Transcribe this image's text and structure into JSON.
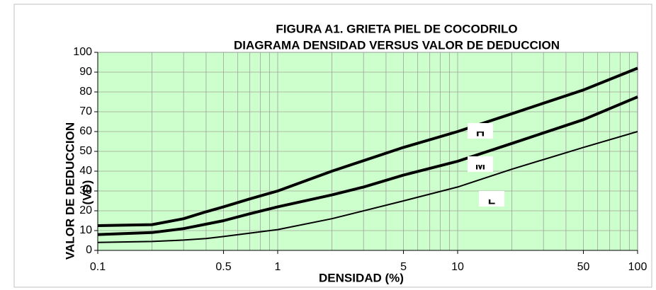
{
  "chart_data": {
    "type": "line",
    "title": "FIGURA A1.  GRIETA PIEL DE COCODRILO",
    "subtitle": "DIAGRAMA DENSIDAD VERSUS VALOR DE DEDUCCION",
    "xlabel": "DENSIDAD  (%)",
    "ylabel": [
      "VALOR DE DEDUCCION",
      "(VD)"
    ],
    "xscale": "log",
    "xlim": [
      0.1,
      100
    ],
    "xticks": [
      0.1,
      0.5,
      1,
      5,
      10,
      50,
      100
    ],
    "xgrid": [
      0.2,
      0.3,
      0.4,
      0.5,
      0.6,
      0.7,
      0.8,
      0.9,
      1,
      2,
      3,
      4,
      5,
      6,
      7,
      8,
      9,
      10,
      20,
      30,
      40,
      50,
      60,
      70,
      80,
      90
    ],
    "ylim": [
      0,
      100
    ],
    "yticks": [
      0,
      10,
      20,
      30,
      40,
      50,
      60,
      70,
      80,
      90,
      100
    ],
    "grid": true,
    "background": "#ccffcc",
    "series": [
      {
        "name": "H",
        "color": "#000000",
        "width": 4,
        "x": [
          0.1,
          0.2,
          0.3,
          0.4,
          0.5,
          0.7,
          1,
          2,
          5,
          10,
          20,
          50,
          100
        ],
        "values": [
          12.5,
          13,
          16,
          19.5,
          22,
          26,
          30,
          40,
          52,
          60,
          69,
          81,
          92
        ]
      },
      {
        "name": "M",
        "color": "#000000",
        "width": 4,
        "x": [
          0.1,
          0.2,
          0.3,
          0.5,
          0.7,
          1,
          2,
          3,
          5,
          10,
          20,
          50,
          100
        ],
        "values": [
          8,
          9,
          11,
          15,
          18.5,
          22,
          28,
          32,
          38,
          45,
          54,
          66,
          77.5
        ]
      },
      {
        "name": "L",
        "color": "#000000",
        "width": 2,
        "x": [
          0.1,
          0.2,
          0.3,
          0.4,
          0.5,
          1,
          2,
          5,
          10,
          20,
          50,
          100
        ],
        "values": [
          4,
          4.5,
          5.2,
          6,
          7,
          10.5,
          16,
          25,
          32,
          41,
          52,
          60
        ]
      }
    ]
  }
}
